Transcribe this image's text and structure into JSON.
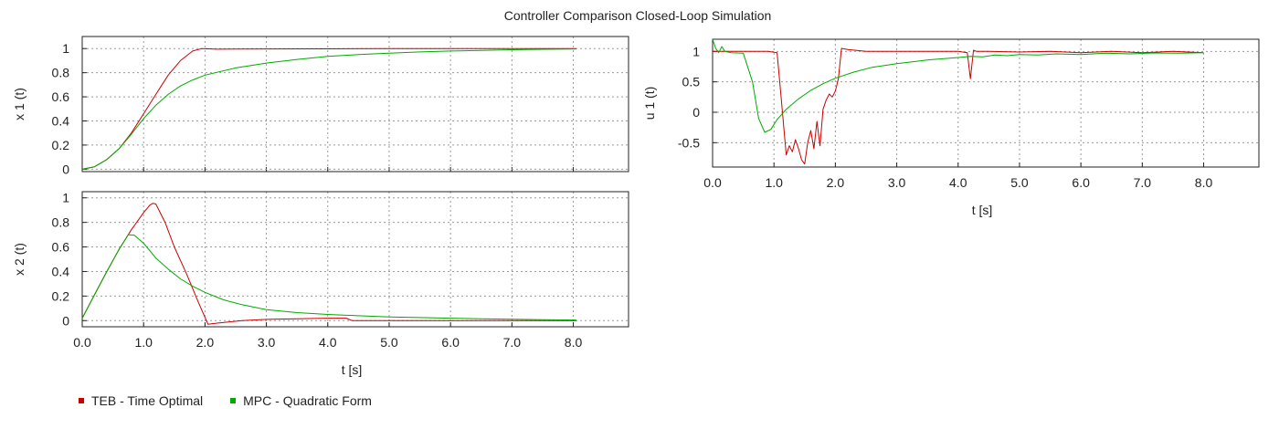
{
  "title": "Controller Comparison Closed-Loop Simulation",
  "colors": {
    "teb": "#cc0000",
    "mpc": "#00aa00",
    "grid": "#9a9a9a",
    "frame": "#222222"
  },
  "legend": [
    {
      "label": "TEB - Time Optimal",
      "color": "#cc0000"
    },
    {
      "label": "MPC - Quadratic Form",
      "color": "#00aa00"
    }
  ],
  "chart_data": [
    {
      "type": "line",
      "id": "x1",
      "ylabel": "x 1 (t)",
      "xlabel": "",
      "xlim": [
        0,
        8.9
      ],
      "ylim": [
        -0.02,
        1.1
      ],
      "yticks": [
        0,
        0.2,
        0.4,
        0.6,
        0.8,
        1
      ],
      "ytick_labels": [
        "0",
        "0.2",
        "0.4",
        "0.6",
        "0.8",
        "1"
      ],
      "xticks": [
        1,
        2,
        3,
        4,
        5,
        6,
        7,
        8
      ],
      "xtick_labels": [],
      "series": [
        {
          "name": "TEB - Time Optimal",
          "x": [
            0,
            0.2,
            0.4,
            0.6,
            0.8,
            1.0,
            1.2,
            1.4,
            1.6,
            1.8,
            1.95,
            2.2,
            3.0,
            4.0,
            5.0,
            6.0,
            7.0,
            8.05
          ],
          "y": [
            0,
            0.02,
            0.08,
            0.17,
            0.3,
            0.46,
            0.62,
            0.78,
            0.9,
            0.98,
            1.0,
            0.995,
            0.997,
            0.998,
            0.999,
            1.0,
            1.0,
            1.0
          ]
        },
        {
          "name": "MPC - Quadratic Form",
          "x": [
            0,
            0.2,
            0.4,
            0.6,
            0.8,
            1.0,
            1.2,
            1.4,
            1.6,
            1.8,
            2.0,
            2.5,
            3.0,
            3.5,
            4.0,
            4.5,
            5.0,
            5.5,
            6.0,
            6.5,
            7.0,
            7.5,
            8.05
          ],
          "y": [
            0,
            0.02,
            0.08,
            0.17,
            0.29,
            0.42,
            0.53,
            0.62,
            0.69,
            0.74,
            0.78,
            0.84,
            0.88,
            0.91,
            0.935,
            0.95,
            0.962,
            0.972,
            0.98,
            0.985,
            0.99,
            0.994,
            0.997
          ]
        }
      ]
    },
    {
      "type": "line",
      "id": "x2",
      "ylabel": "x 2 (t)",
      "xlabel": "t [s]",
      "xlim": [
        0,
        8.9
      ],
      "ylim": [
        -0.05,
        1.05
      ],
      "yticks": [
        0,
        0.2,
        0.4,
        0.6,
        0.8,
        1
      ],
      "ytick_labels": [
        "0",
        "0.2",
        "0.4",
        "0.6",
        "0.8",
        "1"
      ],
      "xticks": [
        0,
        1,
        2,
        3,
        4,
        5,
        6,
        7,
        8
      ],
      "xtick_labels": [
        "0.0",
        "1.0",
        "2.0",
        "3.0",
        "4.0",
        "5.0",
        "6.0",
        "7.0",
        "8.0"
      ],
      "series": [
        {
          "name": "TEB - Time Optimal",
          "x": [
            0,
            0.2,
            0.4,
            0.6,
            0.8,
            1.0,
            1.1,
            1.15,
            1.2,
            1.35,
            1.5,
            1.7,
            1.9,
            2.05,
            2.2,
            2.6,
            3.0,
            3.5,
            4.0,
            4.3,
            4.4,
            5.0,
            6.0,
            7.0,
            8.05
          ],
          "y": [
            0.02,
            0.21,
            0.4,
            0.58,
            0.74,
            0.88,
            0.94,
            0.955,
            0.95,
            0.8,
            0.6,
            0.38,
            0.14,
            -0.03,
            -0.02,
            0.0,
            0.01,
            0.015,
            0.02,
            0.02,
            0.0,
            0.0,
            0.0,
            0.0,
            0.0
          ]
        },
        {
          "name": "MPC - Quadratic Form",
          "x": [
            0,
            0.2,
            0.4,
            0.6,
            0.75,
            0.85,
            1.0,
            1.2,
            1.4,
            1.6,
            1.8,
            2.0,
            2.3,
            2.6,
            3.0,
            3.5,
            4.0,
            4.5,
            5.0,
            5.5,
            6.0,
            6.5,
            7.0,
            7.5,
            8.05
          ],
          "y": [
            0.02,
            0.21,
            0.4,
            0.58,
            0.7,
            0.695,
            0.63,
            0.51,
            0.42,
            0.34,
            0.28,
            0.23,
            0.17,
            0.13,
            0.09,
            0.065,
            0.05,
            0.04,
            0.03,
            0.025,
            0.02,
            0.015,
            0.012,
            0.008,
            0.005
          ]
        }
      ]
    },
    {
      "type": "line",
      "id": "u1",
      "ylabel": "u 1 (t)",
      "xlabel": "t [s]",
      "xlim": [
        0,
        8.9
      ],
      "ylim": [
        -0.9,
        1.2
      ],
      "yticks": [
        -0.5,
        0,
        0.5,
        1
      ],
      "ytick_labels": [
        "-0.5",
        "0",
        "0.5",
        "1"
      ],
      "xticks": [
        0,
        1,
        2,
        3,
        4,
        5,
        6,
        7,
        8
      ],
      "xtick_labels": [
        "0.0",
        "1.0",
        "2.0",
        "3.0",
        "4.0",
        "5.0",
        "6.0",
        "7.0",
        "8.0"
      ],
      "series": [
        {
          "name": "TEB - Time Optimal",
          "x": [
            0,
            0.3,
            0.6,
            0.9,
            1.05,
            1.12,
            1.2,
            1.25,
            1.3,
            1.35,
            1.4,
            1.45,
            1.5,
            1.55,
            1.6,
            1.65,
            1.7,
            1.75,
            1.8,
            1.85,
            1.9,
            1.95,
            2.0,
            2.05,
            2.1,
            2.2,
            2.5,
            3.0,
            3.5,
            4.0,
            4.15,
            4.2,
            4.25,
            4.3,
            4.5,
            5.0,
            5.5,
            6.0,
            6.5,
            7.0,
            7.5,
            8.0
          ],
          "y": [
            1.0,
            1.0,
            1.0,
            1.0,
            0.98,
            0.2,
            -0.7,
            -0.55,
            -0.65,
            -0.45,
            -0.6,
            -0.78,
            -0.85,
            -0.5,
            -0.3,
            -0.6,
            -0.15,
            -0.55,
            0.05,
            0.2,
            0.3,
            0.25,
            0.35,
            0.55,
            1.05,
            1.03,
            1.0,
            1.0,
            1.0,
            1.0,
            0.98,
            0.55,
            1.02,
            1.0,
            1.0,
            0.99,
            1.0,
            0.98,
            1.0,
            0.98,
            1.0,
            0.98
          ]
        },
        {
          "name": "MPC - Quadratic Form",
          "x": [
            0,
            0.05,
            0.1,
            0.15,
            0.2,
            0.3,
            0.5,
            0.65,
            0.75,
            0.85,
            0.95,
            1.05,
            1.2,
            1.4,
            1.6,
            1.8,
            2.0,
            2.3,
            2.6,
            3.0,
            3.5,
            4.0,
            4.2,
            4.4,
            4.6,
            4.8,
            5.0,
            5.3,
            5.6,
            6.0,
            6.4,
            6.8,
            7.2,
            7.6,
            8.0
          ],
          "y": [
            1.2,
            1.05,
            0.98,
            1.08,
            1.0,
            0.98,
            0.97,
            0.5,
            -0.1,
            -0.33,
            -0.28,
            -0.12,
            0.05,
            0.22,
            0.36,
            0.47,
            0.56,
            0.66,
            0.74,
            0.8,
            0.86,
            0.9,
            0.92,
            0.91,
            0.94,
            0.93,
            0.95,
            0.94,
            0.96,
            0.95,
            0.97,
            0.96,
            0.975,
            0.97,
            0.98
          ]
        }
      ]
    }
  ]
}
